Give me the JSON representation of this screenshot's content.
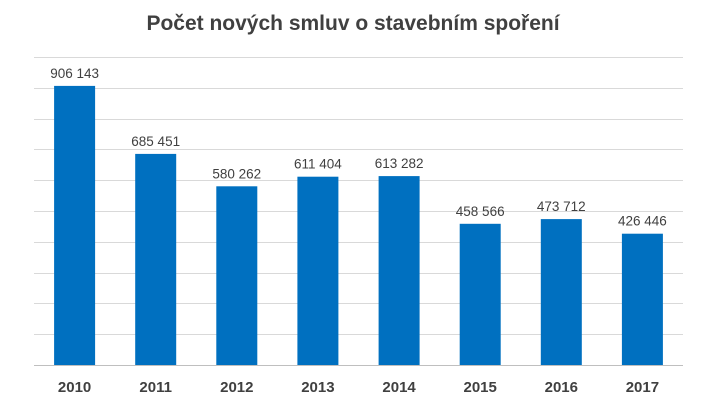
{
  "chart_data": {
    "type": "bar",
    "title": "Počet nových smluv o stavebním spoření",
    "xlabel": "",
    "ylabel": "",
    "categories": [
      "2010",
      "2011",
      "2012",
      "2013",
      "2014",
      "2015",
      "2016",
      "2017"
    ],
    "values": [
      906143,
      685451,
      580262,
      611404,
      613282,
      458566,
      473712,
      426446
    ],
    "data_labels": [
      "906 143",
      "685 451",
      "580 262",
      "611 404",
      "613 282",
      "458 566",
      "473 712",
      "426 446"
    ],
    "ylim": [
      0,
      1000000
    ],
    "grid": true,
    "legend": "none",
    "bar_color": "#0070c0"
  }
}
